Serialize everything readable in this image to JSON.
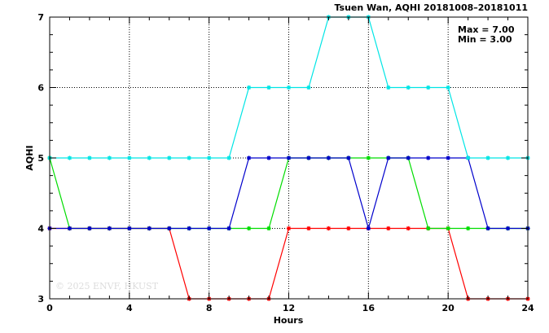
{
  "chart_data": {
    "type": "line",
    "title": "Tsuen Wan, AQHI 20181008–20181011",
    "xlabel": "Hours",
    "ylabel": "AQHI",
    "xlim": [
      0,
      24
    ],
    "ylim": [
      3,
      7
    ],
    "xticks": [
      0,
      4,
      8,
      12,
      16,
      20,
      24
    ],
    "yticks": [
      3,
      4,
      5,
      6,
      7
    ],
    "grid": true,
    "annotations": {
      "max": "Max = 7.00",
      "min": "Min = 3.00"
    },
    "watermark": "© 2025  ENVF, HKUST",
    "x": [
      0,
      1,
      2,
      3,
      4,
      5,
      6,
      7,
      8,
      9,
      10,
      11,
      12,
      13,
      14,
      15,
      16,
      17,
      18,
      19,
      20,
      21,
      22,
      23,
      24
    ],
    "series": [
      {
        "color": "#ff0000",
        "values": [
          4,
          4,
          4,
          4,
          4,
          4,
          4,
          3,
          3,
          3,
          3,
          3,
          4,
          4,
          4,
          4,
          4,
          4,
          4,
          4,
          4,
          3,
          3,
          3,
          3
        ]
      },
      {
        "color": "#00dd00",
        "values": [
          5,
          4,
          4,
          4,
          4,
          4,
          4,
          4,
          4,
          4,
          4,
          4,
          5,
          5,
          5,
          5,
          5,
          5,
          5,
          4,
          4,
          4,
          4,
          4,
          4
        ]
      },
      {
        "color": "#0000cc",
        "values": [
          4,
          4,
          4,
          4,
          4,
          4,
          4,
          4,
          4,
          4,
          5,
          5,
          5,
          5,
          5,
          5,
          4,
          5,
          5,
          5,
          5,
          5,
          4,
          4,
          4
        ]
      },
      {
        "color": "#00e5e5",
        "values": [
          5,
          5,
          5,
          5,
          5,
          5,
          5,
          5,
          5,
          5,
          6,
          6,
          6,
          6,
          7,
          7,
          7,
          6,
          6,
          6,
          6,
          5,
          5,
          5,
          5
        ]
      }
    ]
  }
}
